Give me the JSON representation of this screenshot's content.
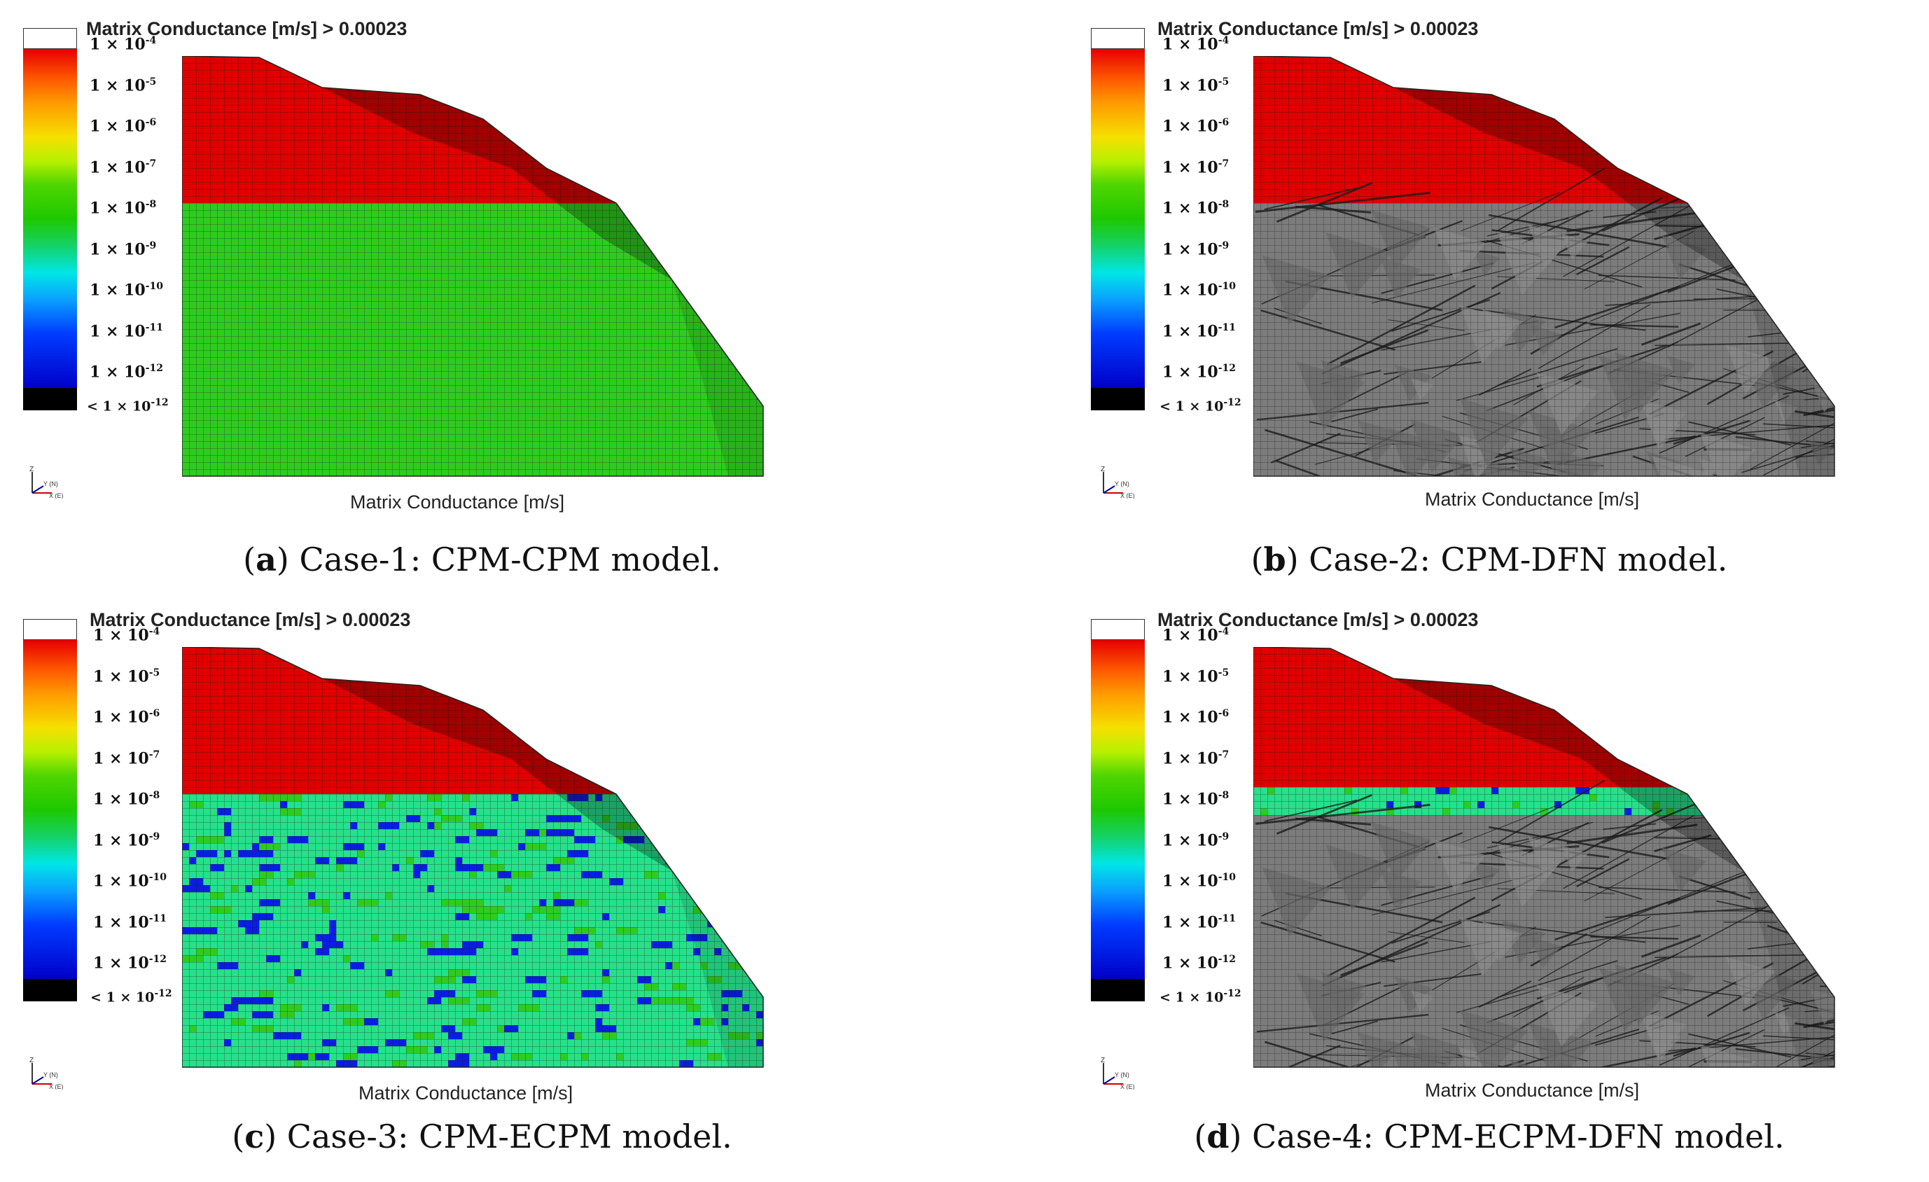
{
  "legend": {
    "title": "Matrix Conductance [m/s] > 0.00023",
    "ticks": [
      {
        "base": "1 × 10",
        "exp": "-4"
      },
      {
        "base": "1 × 10",
        "exp": "-5"
      },
      {
        "base": "1 × 10",
        "exp": "-6"
      },
      {
        "base": "1 × 10",
        "exp": "-7"
      },
      {
        "base": "1 × 10",
        "exp": "-8"
      },
      {
        "base": "1 × 10",
        "exp": "-9"
      },
      {
        "base": "1 × 10",
        "exp": "-10"
      },
      {
        "base": "1 × 10",
        "exp": "-11"
      },
      {
        "base": "1 × 10",
        "exp": "-12"
      },
      {
        "base": "< 1 × 10",
        "exp": "-12"
      }
    ]
  },
  "axis_xlabel": "Matrix Conductance [m/s]",
  "axis_triad": {
    "z": "Z",
    "y": "Y (N)",
    "x": "X (E)"
  },
  "colors": {
    "red": "#e00000",
    "green": "#2ecc1e",
    "teal": "#26e08a",
    "blue": "#0a1ee0",
    "grey": "#7c7c7c"
  },
  "panels": [
    {
      "letter": "a",
      "caption": " Case-1: CPM-CPM model.",
      "(": "(",
      ")": ")",
      "lower_material": "matrix"
    },
    {
      "letter": "b",
      "caption": " Case-2: CPM-DFN model.",
      "(": "(",
      ")": ")",
      "lower_material": "dfn"
    },
    {
      "letter": "c",
      "caption": " Case-3: CPM-ECPM model.",
      "(": "(",
      ")": ")",
      "lower_material": "ecpm"
    },
    {
      "letter": "d",
      "caption": " Case-4: CPM-ECPM-DFN model.",
      "(": "(",
      ")": ")",
      "lower_material": "ecpm-dfn"
    }
  ]
}
